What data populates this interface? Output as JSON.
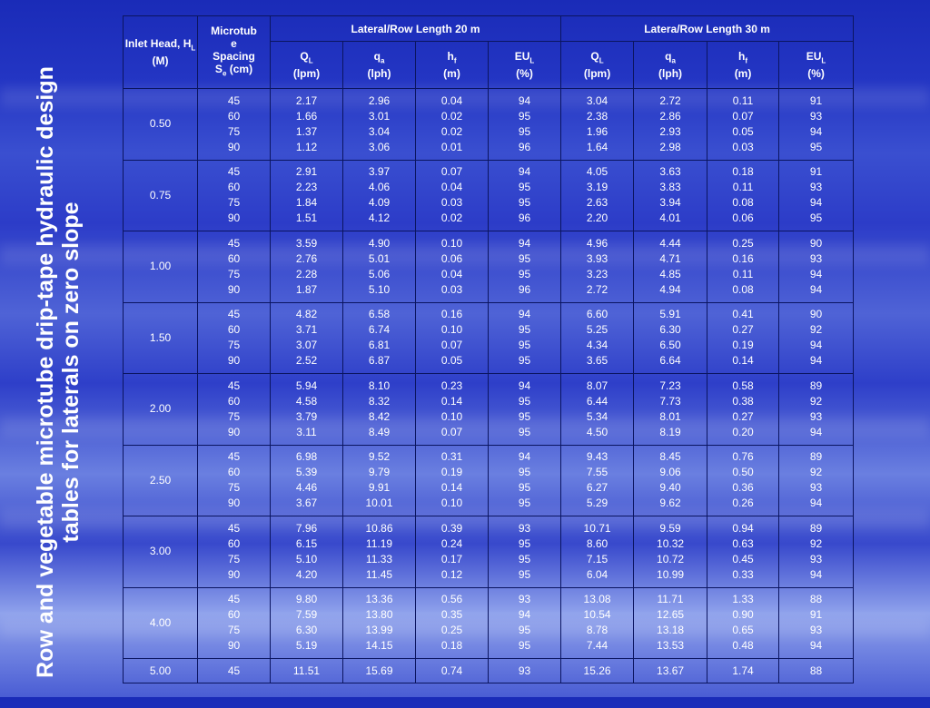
{
  "title": "Row and vegetable microtube drip-tape hydraulic design tables for laterals on zero slope",
  "header": {
    "inlet_head": "Inlet Head, H",
    "inlet_head_sub": "L",
    "inlet_head_unit": " (M)",
    "spacing_l1": "Microtub",
    "spacing_l2": "e",
    "spacing_l3": "Spacing",
    "spacing_s": "S",
    "spacing_sub": "e",
    "spacing_unit": " (cm)",
    "group20": "Lateral/Row Length 20 m",
    "group30": "Latera/Row Length 30 m",
    "cols": [
      {
        "sym": "Q",
        "sub": "L",
        "unit": "(lpm)"
      },
      {
        "sym": "q",
        "sub": "a",
        "unit": "(lph)"
      },
      {
        "sym": "h",
        "sub": "f",
        "unit": "(m)"
      },
      {
        "sym": "EU",
        "sub": "L",
        "unit": "(%)"
      },
      {
        "sym": "Q",
        "sub": "L",
        "unit": "(lpm)"
      },
      {
        "sym": "q",
        "sub": "a",
        "unit": "(lph)"
      },
      {
        "sym": "h",
        "sub": "f",
        "unit": "(m)"
      },
      {
        "sym": "EU",
        "sub": "L",
        "unit": "(%)"
      }
    ]
  },
  "groups": [
    {
      "head": "0.50",
      "spacing": [
        "45",
        "60",
        "75",
        "90"
      ],
      "cols": [
        [
          "2.17",
          "1.66",
          "1.37",
          "1.12"
        ],
        [
          "2.96",
          "3.01",
          "3.04",
          "3.06"
        ],
        [
          "0.04",
          "0.02",
          "0.02",
          "0.01"
        ],
        [
          "94",
          "95",
          "95",
          "96"
        ],
        [
          "3.04",
          "2.38",
          "1.96",
          "1.64"
        ],
        [
          "2.72",
          "2.86",
          "2.93",
          "2.98"
        ],
        [
          "0.11",
          "0.07",
          "0.05",
          "0.03"
        ],
        [
          "91",
          "93",
          "94",
          "95"
        ]
      ]
    },
    {
      "head": "0.75",
      "spacing": [
        "45",
        "60",
        "75",
        "90"
      ],
      "cols": [
        [
          "2.91",
          "2.23",
          "1.84",
          "1.51"
        ],
        [
          "3.97",
          "4.06",
          "4.09",
          "4.12"
        ],
        [
          "0.07",
          "0.04",
          "0.03",
          "0.02"
        ],
        [
          "94",
          "95",
          "95",
          "96"
        ],
        [
          "4.05",
          "3.19",
          "2.63",
          "2.20"
        ],
        [
          "3.63",
          "3.83",
          "3.94",
          "4.01"
        ],
        [
          "0.18",
          "0.11",
          "0.08",
          "0.06"
        ],
        [
          "91",
          "93",
          "94",
          "95"
        ]
      ]
    },
    {
      "head": "1.00",
      "spacing": [
        "45",
        "60",
        "75",
        "90"
      ],
      "cols": [
        [
          "3.59",
          "2.76",
          "2.28",
          "1.87"
        ],
        [
          "4.90",
          "5.01",
          "5.06",
          "5.10"
        ],
        [
          "0.10",
          "0.06",
          "0.04",
          "0.03"
        ],
        [
          "94",
          "95",
          "95",
          "96"
        ],
        [
          "4.96",
          "3.93",
          "3.23",
          "2.72"
        ],
        [
          "4.44",
          "4.71",
          "4.85",
          "4.94"
        ],
        [
          "0.25",
          "0.16",
          "0.11",
          "0.08"
        ],
        [
          "90",
          "93",
          "94",
          "94"
        ]
      ]
    },
    {
      "head": "1.50",
      "spacing": [
        "45",
        "60",
        "75",
        "90"
      ],
      "cols": [
        [
          "4.82",
          "3.71",
          "3.07",
          "2.52"
        ],
        [
          "6.58",
          "6.74",
          "6.81",
          "6.87"
        ],
        [
          "0.16",
          "0.10",
          "0.07",
          "0.05"
        ],
        [
          "94",
          "95",
          "95",
          "95"
        ],
        [
          "6.60",
          "5.25",
          "4.34",
          "3.65"
        ],
        [
          "5.91",
          "6.30",
          "6.50",
          "6.64"
        ],
        [
          "0.41",
          "0.27",
          "0.19",
          "0.14"
        ],
        [
          "90",
          "92",
          "94",
          "94"
        ]
      ]
    },
    {
      "head": "2.00",
      "spacing": [
        "45",
        "60",
        "75",
        "90"
      ],
      "cols": [
        [
          "5.94",
          "4.58",
          "3.79",
          "3.11"
        ],
        [
          "8.10",
          "8.32",
          "8.42",
          "8.49"
        ],
        [
          "0.23",
          "0.14",
          "0.10",
          "0.07"
        ],
        [
          "94",
          "95",
          "95",
          "95"
        ],
        [
          "8.07",
          "6.44",
          "5.34",
          "4.50"
        ],
        [
          "7.23",
          "7.73",
          "8.01",
          "8.19"
        ],
        [
          "0.58",
          "0.38",
          "0.27",
          "0.20"
        ],
        [
          "89",
          "92",
          "93",
          "94"
        ]
      ]
    },
    {
      "head": "2.50",
      "spacing": [
        "45",
        "60",
        "75",
        "90"
      ],
      "cols": [
        [
          "6.98",
          "5.39",
          "4.46",
          "3.67"
        ],
        [
          "9.52",
          "9.79",
          "9.91",
          "10.01"
        ],
        [
          "0.31",
          "0.19",
          "0.14",
          "0.10"
        ],
        [
          "94",
          "95",
          "95",
          "95"
        ],
        [
          "9.43",
          "7.55",
          "6.27",
          "5.29"
        ],
        [
          "8.45",
          "9.06",
          "9.40",
          "9.62"
        ],
        [
          "0.76",
          "0.50",
          "0.36",
          "0.26"
        ],
        [
          "89",
          "92",
          "93",
          "94"
        ]
      ]
    },
    {
      "head": "3.00",
      "spacing": [
        "45",
        "60",
        "75",
        "90"
      ],
      "cols": [
        [
          "7.96",
          "6.15",
          "5.10",
          "4.20"
        ],
        [
          "10.86",
          "11.19",
          "11.33",
          "11.45"
        ],
        [
          "0.39",
          "0.24",
          "0.17",
          "0.12"
        ],
        [
          "93",
          "95",
          "95",
          "95"
        ],
        [
          "10.71",
          "8.60",
          "7.15",
          "6.04"
        ],
        [
          "9.59",
          "10.32",
          "10.72",
          "10.99"
        ],
        [
          "0.94",
          "0.63",
          "0.45",
          "0.33"
        ],
        [
          "89",
          "92",
          "93",
          "94"
        ]
      ]
    },
    {
      "head": "4.00",
      "spacing": [
        "45",
        "60",
        "75",
        "90"
      ],
      "cols": [
        [
          "9.80",
          "7.59",
          "6.30",
          "5.19"
        ],
        [
          "13.36",
          "13.80",
          "13.99",
          "14.15"
        ],
        [
          "0.56",
          "0.35",
          "0.25",
          "0.18"
        ],
        [
          "93",
          "94",
          "95",
          "95"
        ],
        [
          "13.08",
          "10.54",
          "8.78",
          "7.44"
        ],
        [
          "11.71",
          "12.65",
          "13.18",
          "13.53"
        ],
        [
          "1.33",
          "0.90",
          "0.65",
          "0.48"
        ],
        [
          "88",
          "91",
          "93",
          "94"
        ]
      ]
    },
    {
      "head": "5.00",
      "spacing": [
        "45"
      ],
      "cols": [
        [
          "11.51"
        ],
        [
          "15.69"
        ],
        [
          "0.74"
        ],
        [
          "93"
        ],
        [
          "15.26"
        ],
        [
          "13.67"
        ],
        [
          "1.74"
        ],
        [
          "88"
        ]
      ]
    }
  ]
}
